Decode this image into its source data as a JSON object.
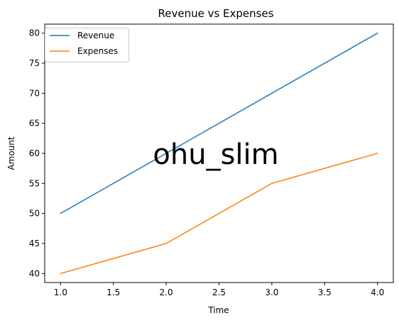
{
  "chart_data": {
    "type": "line",
    "title": "Revenue vs Expenses",
    "xlabel": "Time",
    "ylabel": "Amount",
    "x": [
      1,
      2,
      3,
      4
    ],
    "xlim": [
      0.85,
      4.15
    ],
    "ylim": [
      38.5,
      81.5
    ],
    "xticks": [
      1.0,
      1.5,
      2.0,
      2.5,
      3.0,
      3.5,
      4.0
    ],
    "xtick_labels": [
      "1.0",
      "1.5",
      "2.0",
      "2.5",
      "3.0",
      "3.5",
      "4.0"
    ],
    "yticks": [
      40,
      45,
      50,
      55,
      60,
      65,
      70,
      75,
      80
    ],
    "ytick_labels": [
      "40",
      "45",
      "50",
      "55",
      "60",
      "65",
      "70",
      "75",
      "80"
    ],
    "grid": false,
    "legend_position": "top-left",
    "series": [
      {
        "name": "Revenue",
        "values": [
          50,
          60,
          70,
          80
        ],
        "color": "#1f77b4"
      },
      {
        "name": "Expenses",
        "values": [
          40,
          45,
          55,
          60
        ],
        "color": "#ff7f0e"
      }
    ]
  },
  "watermark": {
    "text": "ohu_slim",
    "color": "#a0a0a0"
  }
}
